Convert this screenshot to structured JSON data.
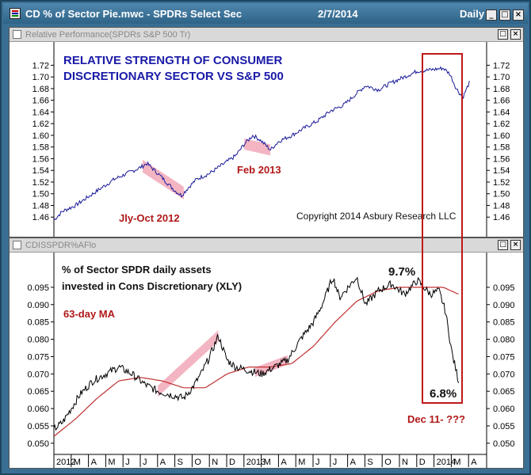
{
  "window": {
    "title": "CD % of Sector Pie.mwc - SPDRs Select Sec",
    "date": "2/7/2014",
    "period": "Daily",
    "buttons": {
      "minimize": "_",
      "maximize": "□",
      "close": "×"
    }
  },
  "panels": {
    "top": {
      "name": "Relative Performance(SPDRs S&P 500 Tr)"
    },
    "bottom": {
      "name": "CDISSPDR%AFlo"
    },
    "buttons": {
      "maximize": "□",
      "close": "×"
    }
  },
  "colors": {
    "title_bar": "#2f6488",
    "frame": "#3a6f93",
    "line_top": "#1a1a9a",
    "ma_line": "#c03030",
    "highlight": "#f2a8b8",
    "box": "#c01818"
  },
  "annotations": {
    "top_title_1": "RELATIVE STRENGTH OF CONSUMER",
    "top_title_2": "DISCRETIONARY SECTOR VS S&P 500",
    "jly_oct": "Jly-Oct 2012",
    "feb": "Feb 2013",
    "copyright": "Copyright 2014 Asbury Research LLC",
    "bottom_title_1": "% of Sector SPDR daily assets",
    "bottom_title_2": "invested in Cons Discretionary (XLY)",
    "ma_label": "63-day MA",
    "peak": "9.7%",
    "last": "6.8%",
    "dec": "Dec 11- ???"
  },
  "chart_data": [
    {
      "type": "line",
      "series": [],
      "y_ticks": [
        "1.72",
        "1.70",
        "1.68",
        "1.66",
        "1.64",
        "1.62",
        "1.60",
        "1.58",
        "1.56",
        "1.54",
        "1.52",
        "1.50",
        "1.48",
        "1.46"
      ],
      "ylim": [
        1.44,
        1.73
      ],
      "x_range": [
        "2012-01",
        "2014-02"
      ],
      "anchors": [
        {
          "t": 0.0,
          "v": 1.455
        },
        {
          "t": 0.02,
          "v": 1.47
        },
        {
          "t": 0.05,
          "v": 1.48
        },
        {
          "t": 0.08,
          "v": 1.495
        },
        {
          "t": 0.11,
          "v": 1.51
        },
        {
          "t": 0.14,
          "v": 1.525
        },
        {
          "t": 0.17,
          "v": 1.535
        },
        {
          "t": 0.2,
          "v": 1.545
        },
        {
          "t": 0.215,
          "v": 1.552
        },
        {
          "t": 0.24,
          "v": 1.535
        },
        {
          "t": 0.26,
          "v": 1.52
        },
        {
          "t": 0.28,
          "v": 1.505
        },
        {
          "t": 0.295,
          "v": 1.497
        },
        {
          "t": 0.31,
          "v": 1.51
        },
        {
          "t": 0.33,
          "v": 1.525
        },
        {
          "t": 0.36,
          "v": 1.535
        },
        {
          "t": 0.39,
          "v": 1.55
        },
        {
          "t": 0.42,
          "v": 1.565
        },
        {
          "t": 0.44,
          "v": 1.585
        },
        {
          "t": 0.46,
          "v": 1.6
        },
        {
          "t": 0.475,
          "v": 1.593
        },
        {
          "t": 0.49,
          "v": 1.583
        },
        {
          "t": 0.5,
          "v": 1.575
        },
        {
          "t": 0.52,
          "v": 1.59
        },
        {
          "t": 0.55,
          "v": 1.6
        },
        {
          "t": 0.58,
          "v": 1.613
        },
        {
          "t": 0.61,
          "v": 1.625
        },
        {
          "t": 0.64,
          "v": 1.642
        },
        {
          "t": 0.67,
          "v": 1.652
        },
        {
          "t": 0.7,
          "v": 1.672
        },
        {
          "t": 0.72,
          "v": 1.685
        },
        {
          "t": 0.75,
          "v": 1.678
        },
        {
          "t": 0.78,
          "v": 1.69
        },
        {
          "t": 0.81,
          "v": 1.7
        },
        {
          "t": 0.84,
          "v": 1.71
        },
        {
          "t": 0.87,
          "v": 1.712
        },
        {
          "t": 0.9,
          "v": 1.715
        },
        {
          "t": 0.915,
          "v": 1.705
        },
        {
          "t": 0.93,
          "v": 1.68
        },
        {
          "t": 0.945,
          "v": 1.665
        },
        {
          "t": 0.96,
          "v": 1.69
        }
      ]
    },
    {
      "type": "line",
      "series": [],
      "y_ticks": [
        "0.095",
        "0.090",
        "0.085",
        "0.080",
        "0.075",
        "0.070",
        "0.065",
        "0.060",
        "0.055",
        "0.050"
      ],
      "ylim": [
        0.047,
        0.1
      ],
      "anchors": [
        {
          "t": 0.0,
          "v": 0.054
        },
        {
          "t": 0.02,
          "v": 0.056
        },
        {
          "t": 0.04,
          "v": 0.06
        },
        {
          "t": 0.06,
          "v": 0.064
        },
        {
          "t": 0.09,
          "v": 0.068
        },
        {
          "t": 0.12,
          "v": 0.07
        },
        {
          "t": 0.15,
          "v": 0.072
        },
        {
          "t": 0.18,
          "v": 0.07
        },
        {
          "t": 0.21,
          "v": 0.067
        },
        {
          "t": 0.24,
          "v": 0.065
        },
        {
          "t": 0.27,
          "v": 0.064
        },
        {
          "t": 0.3,
          "v": 0.063
        },
        {
          "t": 0.32,
          "v": 0.066
        },
        {
          "t": 0.34,
          "v": 0.07
        },
        {
          "t": 0.36,
          "v": 0.075
        },
        {
          "t": 0.38,
          "v": 0.081
        },
        {
          "t": 0.4,
          "v": 0.074
        },
        {
          "t": 0.42,
          "v": 0.072
        },
        {
          "t": 0.45,
          "v": 0.071
        },
        {
          "t": 0.48,
          "v": 0.07
        },
        {
          "t": 0.51,
          "v": 0.072
        },
        {
          "t": 0.54,
          "v": 0.074
        },
        {
          "t": 0.57,
          "v": 0.08
        },
        {
          "t": 0.6,
          "v": 0.085
        },
        {
          "t": 0.62,
          "v": 0.09
        },
        {
          "t": 0.645,
          "v": 0.098
        },
        {
          "t": 0.66,
          "v": 0.092
        },
        {
          "t": 0.68,
          "v": 0.095
        },
        {
          "t": 0.7,
          "v": 0.098
        },
        {
          "t": 0.72,
          "v": 0.09
        },
        {
          "t": 0.75,
          "v": 0.094
        },
        {
          "t": 0.78,
          "v": 0.096
        },
        {
          "t": 0.81,
          "v": 0.093
        },
        {
          "t": 0.84,
          "v": 0.097
        },
        {
          "t": 0.87,
          "v": 0.093
        },
        {
          "t": 0.89,
          "v": 0.094
        },
        {
          "t": 0.905,
          "v": 0.088
        },
        {
          "t": 0.92,
          "v": 0.076
        },
        {
          "t": 0.935,
          "v": 0.068
        }
      ],
      "ma_anchors": [
        {
          "t": 0.0,
          "v": 0.052
        },
        {
          "t": 0.05,
          "v": 0.057
        },
        {
          "t": 0.1,
          "v": 0.063
        },
        {
          "t": 0.15,
          "v": 0.068
        },
        {
          "t": 0.2,
          "v": 0.069
        },
        {
          "t": 0.25,
          "v": 0.068
        },
        {
          "t": 0.3,
          "v": 0.066
        },
        {
          "t": 0.35,
          "v": 0.066
        },
        {
          "t": 0.4,
          "v": 0.07
        },
        {
          "t": 0.45,
          "v": 0.072
        },
        {
          "t": 0.5,
          "v": 0.072
        },
        {
          "t": 0.55,
          "v": 0.073
        },
        {
          "t": 0.6,
          "v": 0.078
        },
        {
          "t": 0.65,
          "v": 0.085
        },
        {
          "t": 0.7,
          "v": 0.091
        },
        {
          "t": 0.75,
          "v": 0.094
        },
        {
          "t": 0.8,
          "v": 0.095
        },
        {
          "t": 0.85,
          "v": 0.095
        },
        {
          "t": 0.9,
          "v": 0.095
        },
        {
          "t": 0.935,
          "v": 0.093
        }
      ]
    }
  ],
  "x_axis": {
    "labels": [
      "2012",
      "M",
      "A",
      "M",
      "J",
      "J",
      "A",
      "S",
      "O",
      "N",
      "D",
      "2013",
      "M",
      "A",
      "M",
      "J",
      "J",
      "A",
      "S",
      "O",
      "N",
      "D",
      "2014",
      "M",
      "A"
    ]
  }
}
